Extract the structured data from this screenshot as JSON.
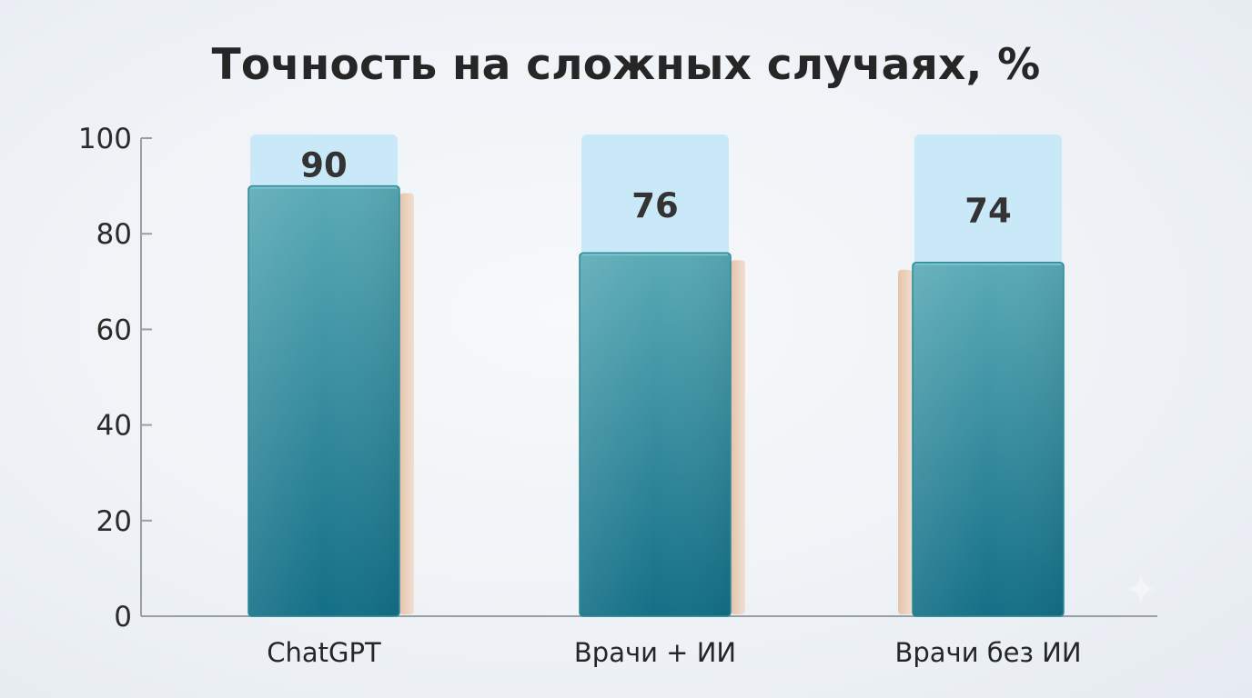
{
  "chart_data": {
    "type": "bar",
    "title": "Точность на сложных случаях, %",
    "categories": [
      "ChatGPT",
      "Врачи + ИИ",
      "Врачи без ИИ"
    ],
    "values": [
      90,
      76,
      74
    ],
    "data_labels": [
      "90",
      "76",
      "74"
    ],
    "xlabel": "",
    "ylabel": "",
    "ylim": [
      0,
      100
    ],
    "yticks": [
      0,
      20,
      40,
      60,
      80,
      100
    ],
    "ytick_labels": [
      "0",
      "20",
      "40",
      "60",
      "80",
      "100"
    ],
    "grid": false,
    "legend": "none",
    "colors": {
      "bar_top": "#5aaab6",
      "bar_bottom": "#136f86",
      "bar_outline": "#2e8a99",
      "label_box": "#c9e9f8",
      "bar_shadow": "#e8cbb4",
      "axis": "#9a9fa6"
    }
  },
  "decoration": {
    "sparkle_icon": "sparkle-icon"
  }
}
